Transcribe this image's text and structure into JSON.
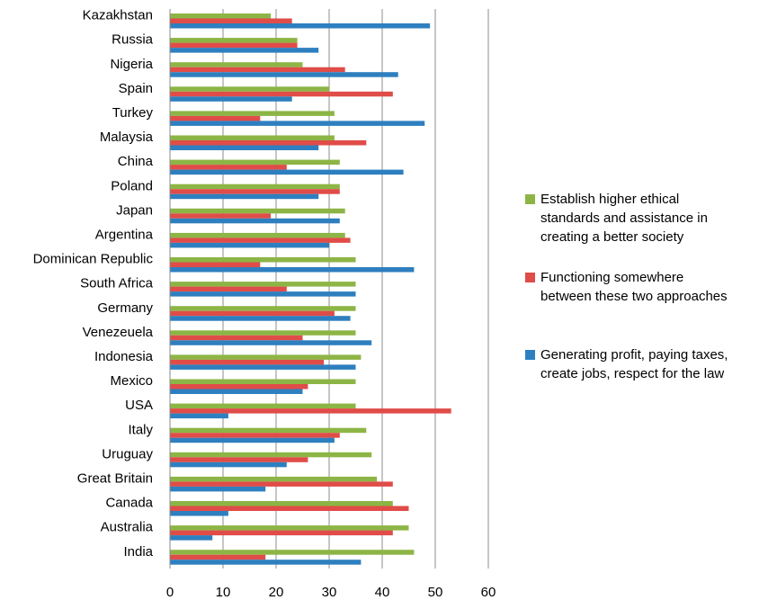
{
  "chart_data": {
    "type": "bar",
    "orientation": "horizontal",
    "title": "",
    "xlabel": "",
    "ylabel": "",
    "xlim": [
      0,
      60
    ],
    "x_ticks": [
      "0",
      "10",
      "20",
      "30",
      "40",
      "50",
      "60"
    ],
    "grid": "vertical gridlines",
    "legend_position": "right",
    "categories": [
      "Kazakhstan",
      "Russia",
      "Nigeria",
      "Spain",
      "Turkey",
      "Malaysia",
      "China",
      "Poland",
      "Japan",
      "Argentina",
      "Dominican Republic",
      "South Africa",
      "Germany",
      "Venezeuela",
      "Indonesia",
      "Mexico",
      "USA",
      "Italy",
      "Uruguay",
      "Great Britain",
      "Canada",
      "Australia",
      "India"
    ],
    "series": [
      {
        "name": "Establish higher ethical standards and assistance in creating a better society",
        "color": "#8db545",
        "values": [
          19,
          24,
          25,
          30,
          31,
          31,
          32,
          32,
          33,
          33,
          35,
          35,
          35,
          35,
          36,
          35,
          35,
          37,
          38,
          39,
          42,
          45,
          46
        ]
      },
      {
        "name": "Functioning somewhere between these two approaches",
        "color": "#e04c48",
        "values": [
          23,
          24,
          33,
          42,
          17,
          37,
          22,
          32,
          19,
          34,
          17,
          22,
          31,
          25,
          29,
          26,
          53,
          32,
          26,
          42,
          45,
          42,
          18
        ]
      },
      {
        "name": "Generating profit, paying taxes, create jobs, respect for the law",
        "color": "#2e7fbf",
        "values": [
          49,
          28,
          43,
          23,
          48,
          28,
          44,
          28,
          32,
          30,
          46,
          35,
          34,
          38,
          35,
          25,
          11,
          31,
          22,
          18,
          11,
          8,
          36
        ]
      }
    ]
  },
  "legend": {
    "items": [
      {
        "line1": "Establish higher ethical",
        "line2": "standards and assistance in",
        "line3": "creating a better society",
        "color": "#8db545"
      },
      {
        "line1": "Functioning somewhere",
        "line2": "between these two approaches",
        "line3": "",
        "color": "#e04c48"
      },
      {
        "line1": "Generating profit, paying taxes,",
        "line2": "create jobs, respect for the law",
        "line3": "",
        "color": "#2e7fbf"
      }
    ]
  }
}
